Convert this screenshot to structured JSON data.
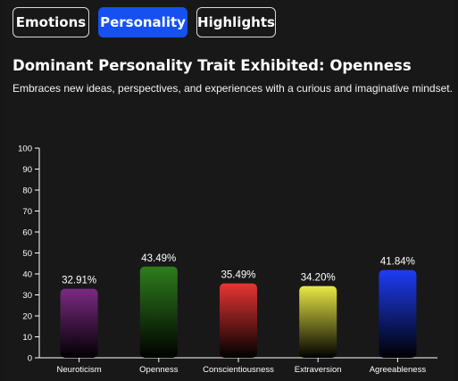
{
  "tabs": [
    {
      "label": "Emotions",
      "active": false
    },
    {
      "label": "Personality",
      "active": true
    },
    {
      "label": "Highlights",
      "active": false
    }
  ],
  "heading": "Dominant Personality Trait Exhibited: Openness",
  "description": "Embraces new ideas, perspectives, and experiences with a curious and imaginative mindset.",
  "colors": {
    "accent": "#1551f0",
    "background": "#181818"
  },
  "chart_data": {
    "type": "bar",
    "title": "",
    "xlabel": "",
    "ylabel": "",
    "ylim": [
      0,
      100
    ],
    "yticks": [
      0,
      10,
      20,
      30,
      40,
      50,
      60,
      70,
      80,
      90,
      100
    ],
    "grid": false,
    "categories": [
      "Neuroticism",
      "Openness",
      "Conscientiousness",
      "Extraversion",
      "Agreeableness"
    ],
    "values": [
      32.91,
      43.49,
      35.49,
      34.2,
      41.84
    ],
    "value_labels": [
      "32.91%",
      "43.49%",
      "35.49%",
      "34.20%",
      "41.84%"
    ],
    "colors": [
      "#7b2a82",
      "#2f7d1e",
      "#e83434",
      "#e8e845",
      "#1f3cf5"
    ]
  }
}
